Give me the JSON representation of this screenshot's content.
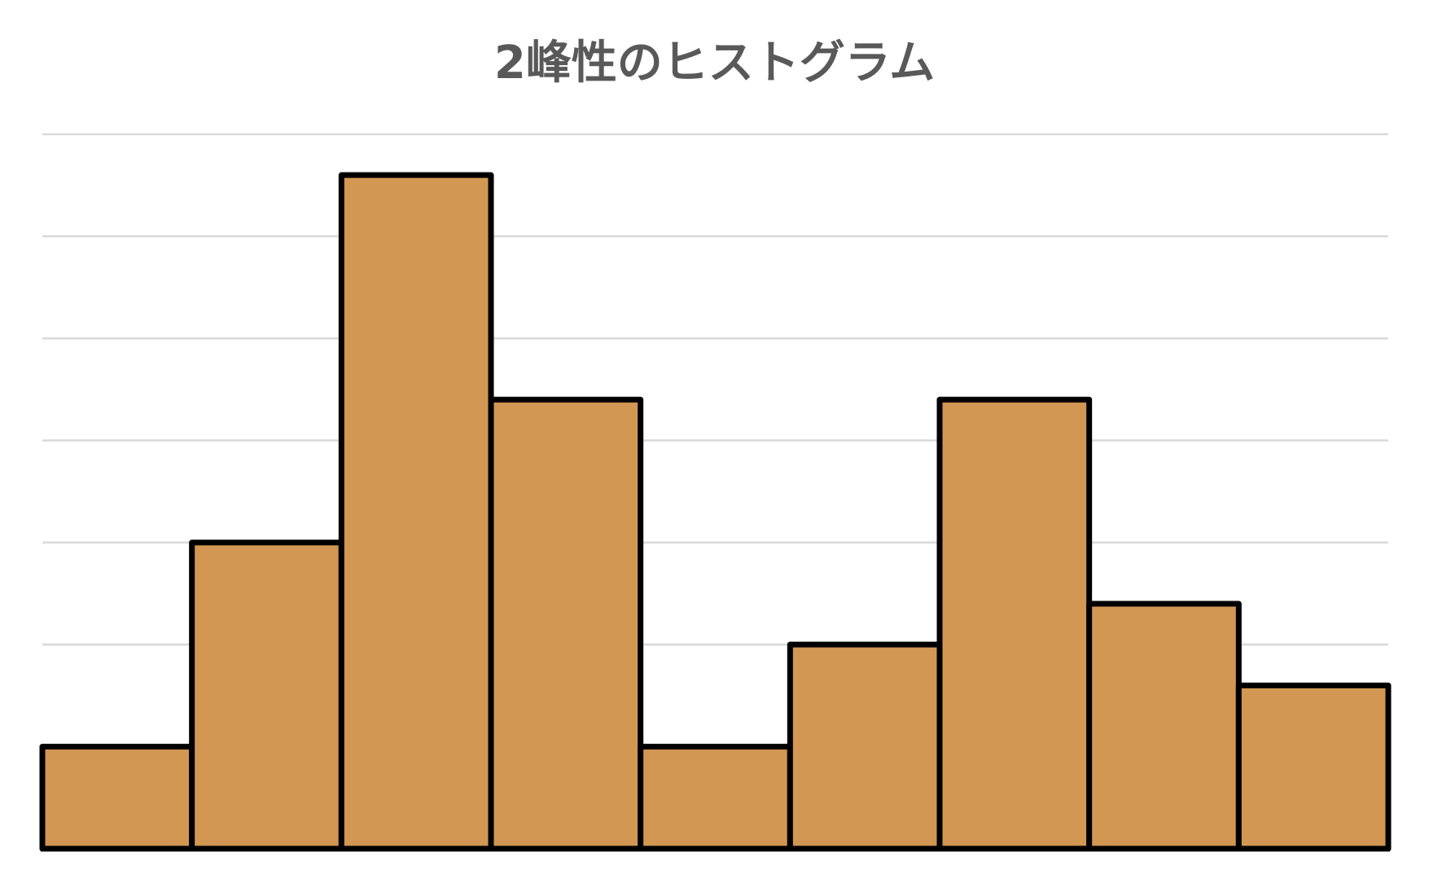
{
  "chart_data": {
    "type": "bar",
    "title": "2峰性のヒストグラム",
    "xlabel": "",
    "ylabel": "",
    "categories": [
      "",
      "",
      "",
      "",
      "",
      "",
      "",
      "",
      ""
    ],
    "series": [
      {
        "values": [
          1,
          3,
          6.6,
          4.4,
          1,
          2,
          4.4,
          2.4,
          1.6
        ]
      }
    ],
    "ylim": [
      0,
      7
    ],
    "grid": true,
    "bar_gap": 0,
    "legend": "none",
    "colors": {
      "bar_fill": "#d29753",
      "bar_stroke": "#000000",
      "grid": "#d9d9d9",
      "title": "#595959",
      "axis": "#000000"
    }
  }
}
